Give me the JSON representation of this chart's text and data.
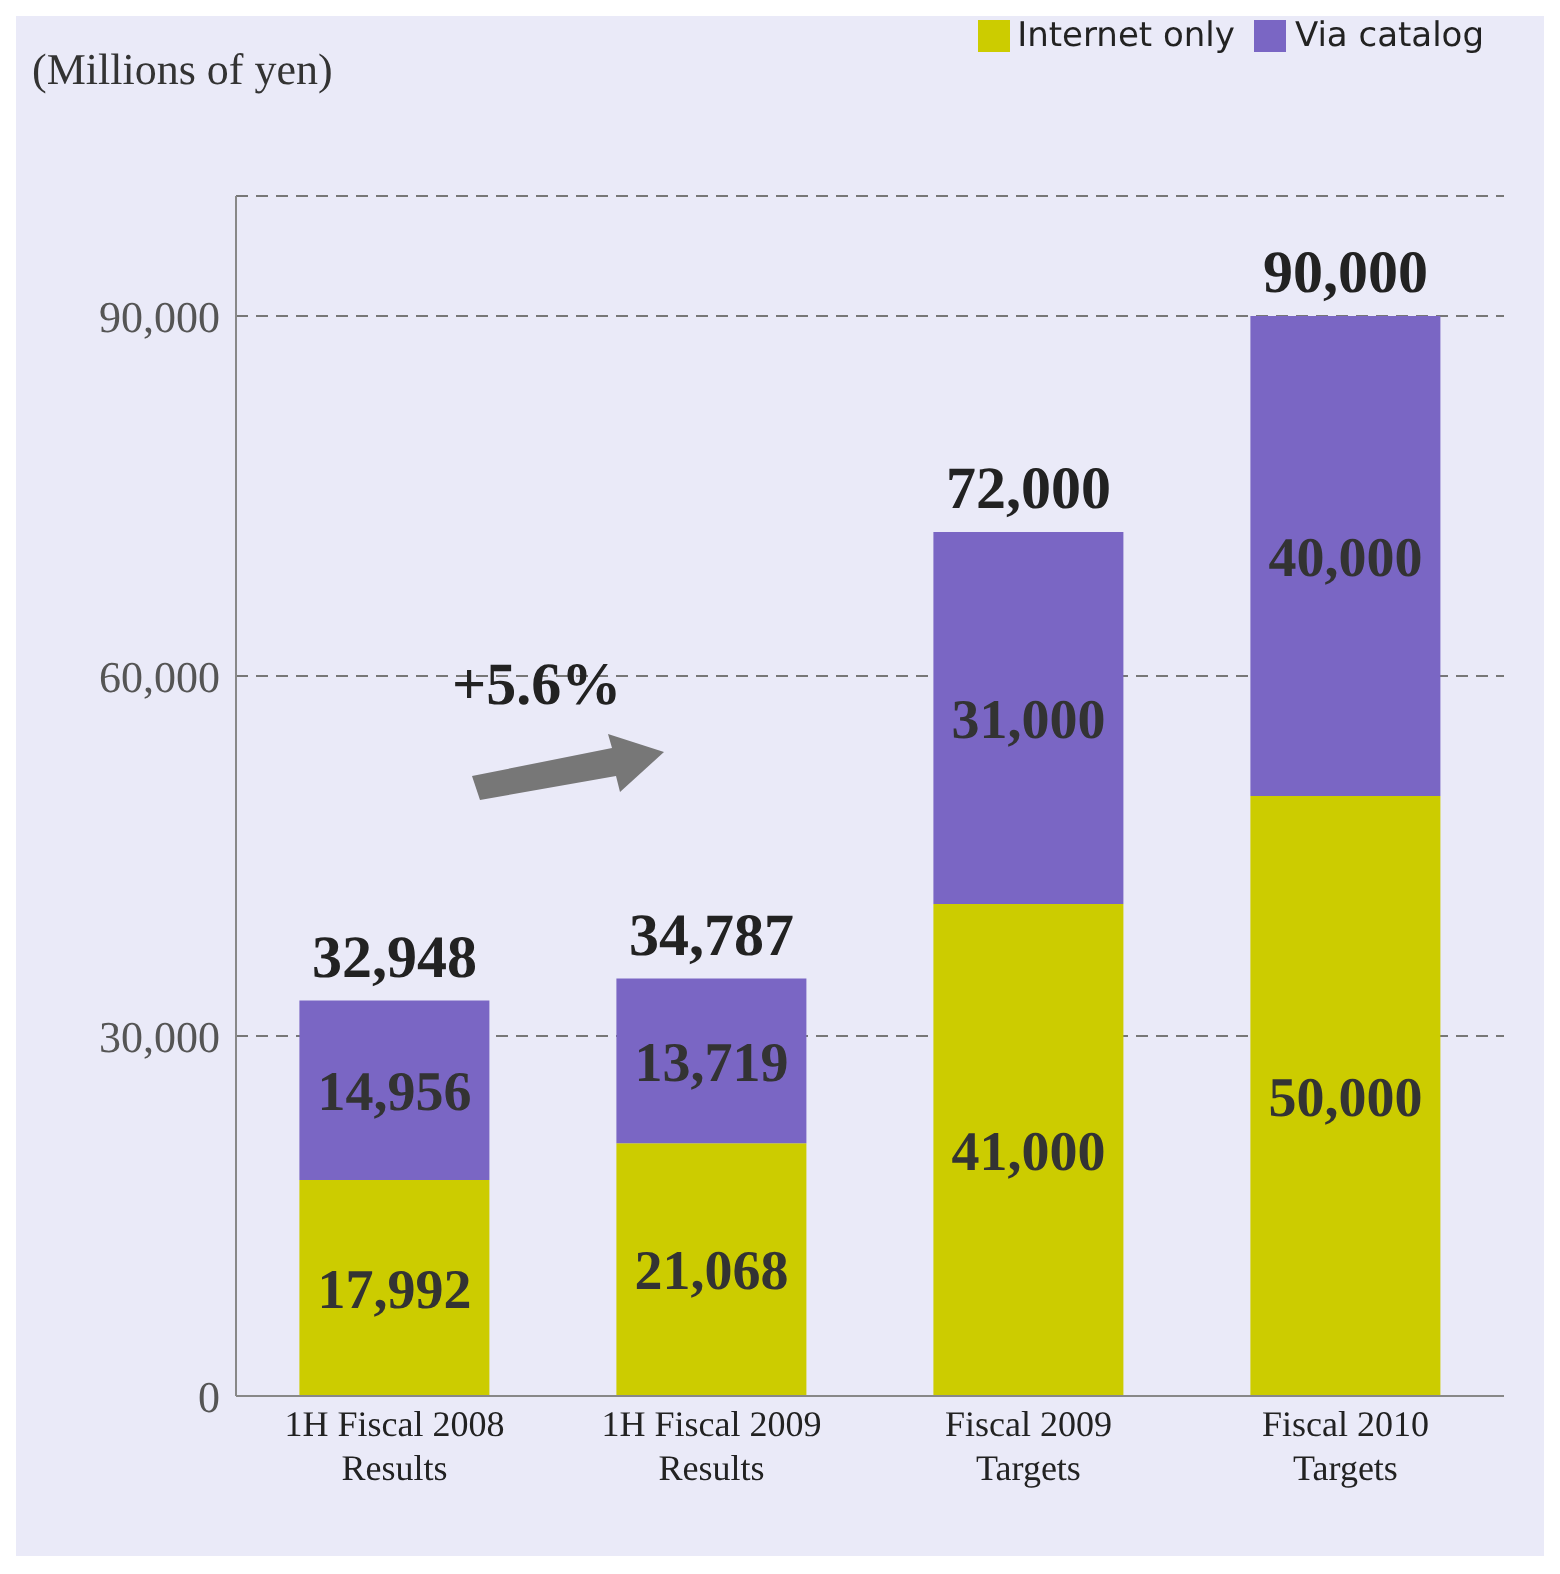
{
  "chart_data": {
    "type": "bar",
    "stacked": true,
    "ylabel": "(Millions of yen)",
    "categories": [
      "1H Fiscal 2008 Results",
      "1H Fiscal 2009 Results",
      "Fiscal 2009 Targets",
      "Fiscal 2010 Targets"
    ],
    "series": [
      {
        "name": "Internet only",
        "color": "#cccc00",
        "values": [
          17992,
          21068,
          41000,
          50000
        ],
        "value_labels": [
          "17,992",
          "21,068",
          "41,000",
          "50,000"
        ]
      },
      {
        "name": "Via catalog",
        "color": "#7a66c4",
        "values": [
          14956,
          13719,
          31000,
          40000
        ],
        "value_labels": [
          "14,956",
          "13,719",
          "31,000",
          "40,000"
        ]
      }
    ],
    "totals": [
      "32,948",
      "34,787",
      "72,000",
      "90,000"
    ],
    "annotations": [
      "+5.6%"
    ],
    "ylim": [
      0,
      100000
    ],
    "yticks": [
      {
        "value": 0,
        "label": "0"
      },
      {
        "value": 30000,
        "label": "30,000"
      },
      {
        "value": 60000,
        "label": "60,000"
      },
      {
        "value": 90000,
        "label": "90,000"
      }
    ],
    "grid": "y",
    "legend": "top right"
  }
}
